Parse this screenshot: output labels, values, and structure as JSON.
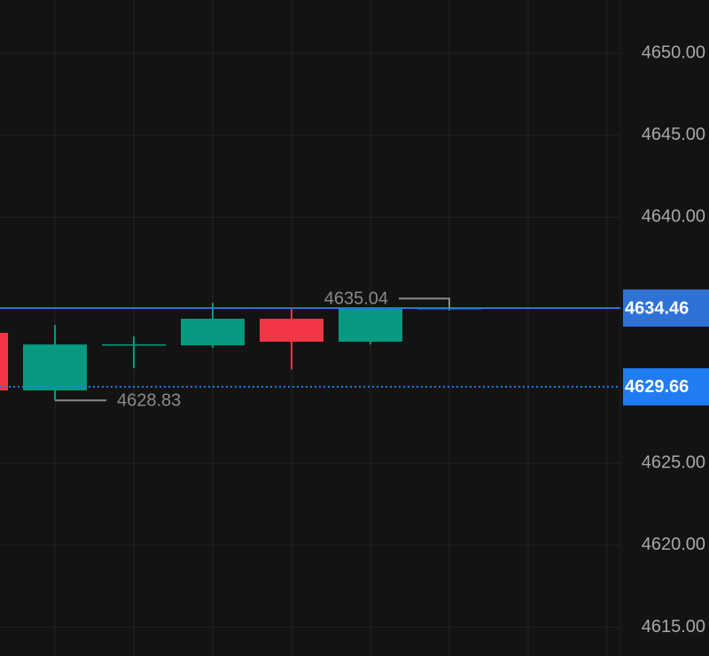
{
  "chart_data": {
    "type": "candlestick",
    "categories": [
      null,
      null,
      null,
      null,
      null,
      null,
      null
    ],
    "series": {
      "open": [
        4632.95,
        4629.44,
        4632.2,
        4632.19,
        4633.81,
        4632.41,
        4634.41
      ],
      "high": [
        4633.2,
        4633.43,
        4632.73,
        4634.78,
        4634.46,
        4634.41,
        4635.04
      ],
      "low": [
        4629.2,
        4628.83,
        4630.79,
        4632.03,
        4630.73,
        4632.24,
        4634.3
      ],
      "close": [
        4629.44,
        4632.24,
        4632.25,
        4633.81,
        4632.41,
        4634.41,
        4634.46
      ]
    },
    "up_color": "#089981",
    "down_color": "#f23645",
    "ylim": [
      4613.25,
      4653.24
    ],
    "yticks": [
      {
        "value": 4615,
        "label": "4615.00"
      },
      {
        "value": 4620,
        "label": "4620.00"
      },
      {
        "value": 4625,
        "label": "4625.00"
      },
      {
        "value": 4640,
        "label": "4640.00"
      },
      {
        "value": 4645,
        "label": "4645.00"
      },
      {
        "value": 4650,
        "label": "4650.00"
      }
    ],
    "grid": true,
    "price_lines": [
      {
        "value": 4634.46,
        "style": "solid",
        "color": "#2f72d6"
      },
      {
        "value": 4629.66,
        "style": "dotted",
        "color": "#1f7cf2"
      }
    ],
    "high_marker": 4635.04,
    "low_marker": 4628.83
  }
}
